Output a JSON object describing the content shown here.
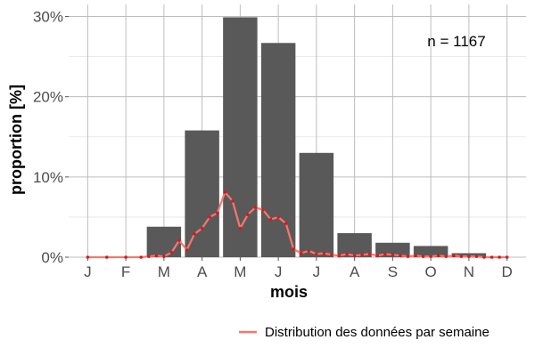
{
  "chart_data": {
    "type": "bar",
    "title": "",
    "xlabel": "mois",
    "ylabel": "proportion [%]",
    "categories": [
      "J",
      "F",
      "M",
      "A",
      "M",
      "J",
      "J",
      "A",
      "S",
      "O",
      "N",
      "D"
    ],
    "ylim": [
      0,
      31.5
    ],
    "yticks": [
      0,
      10,
      20,
      30
    ],
    "ytick_labels": [
      "0%",
      "10%",
      "20%",
      "30%"
    ],
    "grid": true,
    "annotation": "n = 1167",
    "legend_position": "bottom-right",
    "series": [
      {
        "type": "bar",
        "color": "#595959",
        "values": [
          0,
          0,
          3.8,
          15.8,
          29.9,
          26.7,
          13.0,
          3.0,
          1.8,
          1.4,
          0.5,
          0
        ]
      },
      {
        "type": "line",
        "name": "Distribution des données par semaine",
        "color": "#f8766d",
        "point_color": "#d7191c",
        "x": [
          0.0,
          0.5,
          1.0,
          1.4,
          1.6,
          1.8,
          2.0,
          2.2,
          2.4,
          2.6,
          2.8,
          3.0,
          3.2,
          3.4,
          3.6,
          3.8,
          4.0,
          4.2,
          4.4,
          4.6,
          4.8,
          5.0,
          5.2,
          5.4,
          5.6,
          5.8,
          6.0,
          6.2,
          6.4,
          6.6,
          6.8,
          7.0,
          7.2,
          7.4,
          7.6,
          7.8,
          8.0,
          8.2,
          8.4,
          8.6,
          8.8,
          9.0,
          9.2,
          9.4,
          9.6,
          9.8,
          10.0,
          10.2,
          10.4,
          10.6,
          10.8,
          11.0
        ],
        "values": [
          0,
          0,
          0,
          0,
          0.1,
          0.2,
          0.1,
          0.6,
          2.1,
          0.9,
          2.9,
          3.6,
          5.0,
          5.5,
          8.1,
          7.0,
          3.6,
          5.3,
          6.2,
          5.9,
          4.7,
          5.0,
          4.2,
          1.0,
          0.5,
          0.8,
          0.4,
          0.5,
          0.3,
          0.2,
          0.4,
          0.2,
          0.3,
          0.4,
          0.2,
          0.4,
          0.3,
          0.2,
          0.1,
          0.2,
          0.1,
          0.1,
          0.2,
          0.1,
          0.2,
          0.1,
          0.1,
          0.1,
          0,
          0,
          0,
          0
        ]
      }
    ]
  }
}
